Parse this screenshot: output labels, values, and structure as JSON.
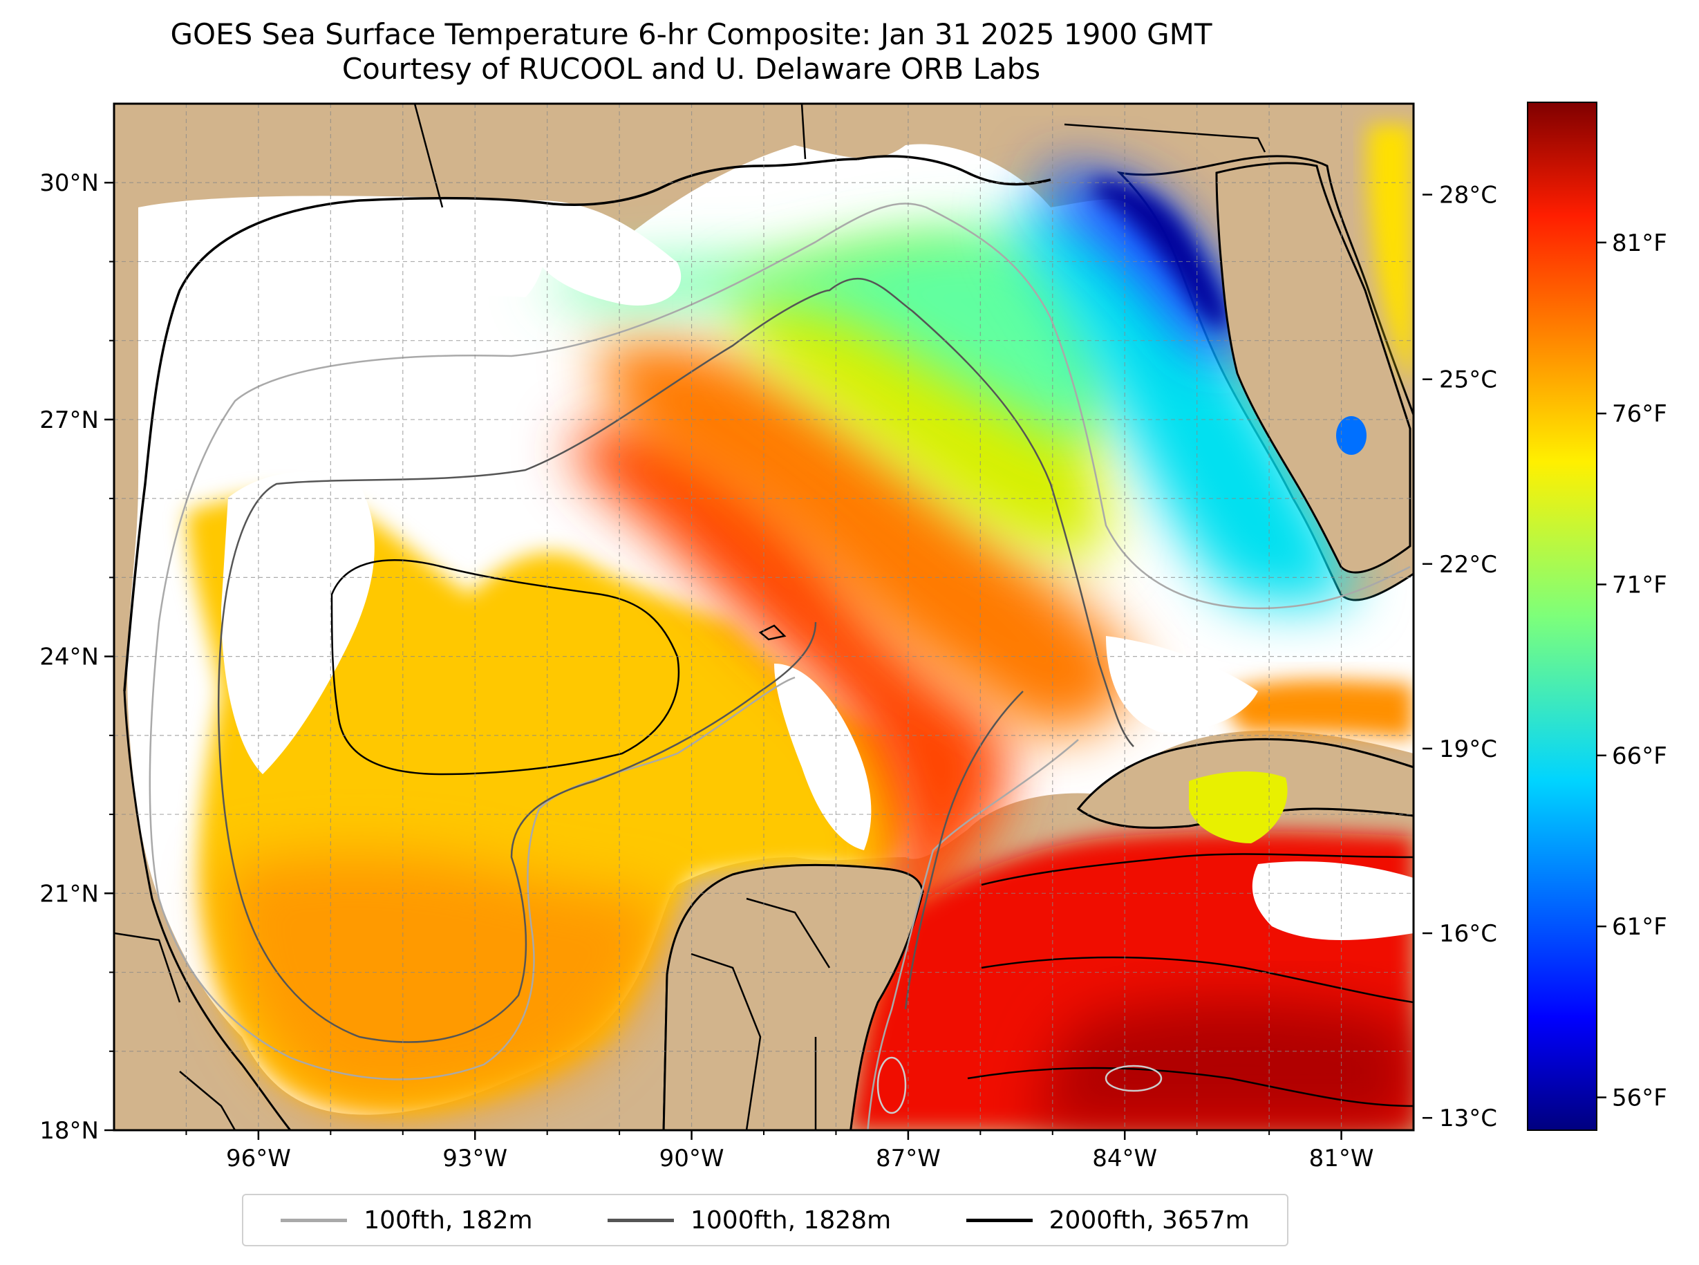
{
  "title": {
    "line1": "GOES Sea Surface Temperature 6-hr Composite: Jan 31 2025 1900 GMT",
    "line2": "Courtesy of RUCOOL and U. Delaware ORB Labs"
  },
  "map": {
    "lat_range": [
      18,
      31
    ],
    "lon_range": [
      -98,
      -80
    ],
    "lat_ticks": [
      {
        "value": 30,
        "label": "30°N"
      },
      {
        "value": 27,
        "label": "27°N"
      },
      {
        "value": 24,
        "label": "24°N"
      },
      {
        "value": 21,
        "label": "21°N"
      },
      {
        "value": 18,
        "label": "18°N"
      }
    ],
    "lon_ticks": [
      {
        "value": -96,
        "label": "96°W"
      },
      {
        "value": -93,
        "label": "93°W"
      },
      {
        "value": -90,
        "label": "90°W"
      },
      {
        "value": -87,
        "label": "87°W"
      },
      {
        "value": -84,
        "label": "84°W"
      },
      {
        "value": -81,
        "label": "81°W"
      }
    ],
    "grid": true,
    "land_color": "#D2B48C",
    "colormap": "jet"
  },
  "colorbar": {
    "celsius_ticks": [
      "28°C",
      "25°C",
      "22°C",
      "19°C",
      "16°C",
      "13°C"
    ],
    "fahrenheit_ticks": [
      "81°F",
      "76°F",
      "71°F",
      "66°F",
      "61°F",
      "56°F"
    ]
  },
  "legend": {
    "items": [
      {
        "label": "100fth, 182m",
        "color": "#a9a9a9"
      },
      {
        "label": "1000fth, 1828m",
        "color": "#555555"
      },
      {
        "label": "2000fth, 3657m",
        "color": "#000000"
      }
    ]
  }
}
